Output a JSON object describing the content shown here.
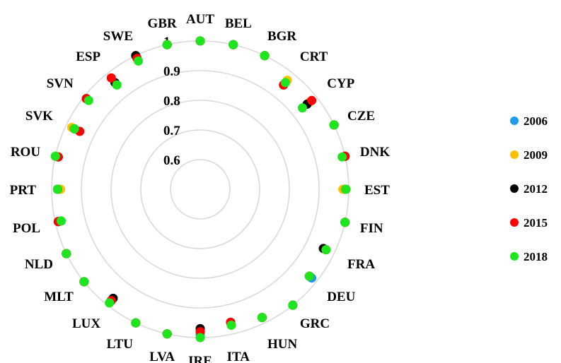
{
  "chart_data": {
    "type": "scatter",
    "subtype": "radar",
    "title": "",
    "radial_range": [
      0.5,
      1.0
    ],
    "radial_ticks": [
      0.6,
      0.7,
      0.8,
      0.9,
      1.0
    ],
    "radial_tick_labels": [
      "0.6",
      "0.7",
      "0.8",
      "0.9",
      "1"
    ],
    "grid": true,
    "legend_position": "right",
    "categories": [
      "AUT",
      "BEL",
      "BGR",
      "CRT",
      "CYP",
      "CZE",
      "DNK",
      "EST",
      "FIN",
      "FRA",
      "DEU",
      "GRC",
      "HUN",
      "ITA",
      "IRE",
      "LVA",
      "LTU",
      "LUX",
      "MLT",
      "NLD",
      "POL",
      "PRT",
      "ROU",
      "SVK",
      "SVN",
      "ESP",
      "SWE",
      "GBR"
    ],
    "series": [
      {
        "name": "2006",
        "color": "#1f9bf0",
        "values": [
          1.0,
          1.0,
          1.0,
          0.95,
          0.97,
          1.0,
          1.0,
          0.99,
          1.0,
          0.97,
          0.98,
          1.0,
          0.98,
          0.97,
          0.99,
          1.0,
          1.0,
          0.98,
          1.0,
          1.0,
          0.98,
          0.98,
          1.0,
          0.97,
          0.99,
          0.95,
          1.0,
          1.0
        ]
      },
      {
        "name": "2009",
        "color": "#ffc000",
        "values": [
          1.0,
          1.0,
          1.0,
          0.97,
          0.97,
          1.0,
          1.0,
          0.98,
          1.0,
          0.97,
          0.97,
          1.0,
          0.98,
          0.97,
          0.98,
          1.0,
          1.0,
          0.99,
          1.0,
          1.0,
          0.99,
          0.97,
          1.0,
          0.98,
          0.99,
          0.96,
          1.0,
          1.0
        ]
      },
      {
        "name": "2012",
        "color": "#000000",
        "values": [
          1.0,
          1.0,
          1.0,
          0.95,
          0.96,
          1.0,
          1.0,
          0.99,
          1.0,
          0.96,
          0.97,
          1.0,
          0.98,
          0.96,
          0.97,
          1.0,
          1.0,
          0.97,
          1.0,
          1.0,
          0.99,
          0.98,
          0.99,
          0.97,
          0.99,
          0.96,
          1.0,
          1.0
        ]
      },
      {
        "name": "2015",
        "color": "#ff0000",
        "values": [
          1.0,
          1.0,
          1.0,
          0.95,
          0.98,
          1.0,
          1.0,
          0.99,
          1.0,
          0.97,
          0.97,
          1.0,
          0.98,
          0.96,
          0.98,
          1.0,
          1.0,
          0.98,
          1.0,
          1.0,
          0.99,
          0.98,
          0.99,
          0.95,
          0.99,
          0.98,
          0.99,
          1.0
        ]
      },
      {
        "name": "2018",
        "color": "#1ee61e",
        "values": [
          1.0,
          1.0,
          1.0,
          0.96,
          0.94,
          1.0,
          0.99,
          0.99,
          1.0,
          0.97,
          0.97,
          1.0,
          0.98,
          0.97,
          1.0,
          1.0,
          1.0,
          0.99,
          1.0,
          1.0,
          0.98,
          0.98,
          1.0,
          0.97,
          0.98,
          0.95,
          0.98,
          1.0
        ]
      }
    ]
  }
}
